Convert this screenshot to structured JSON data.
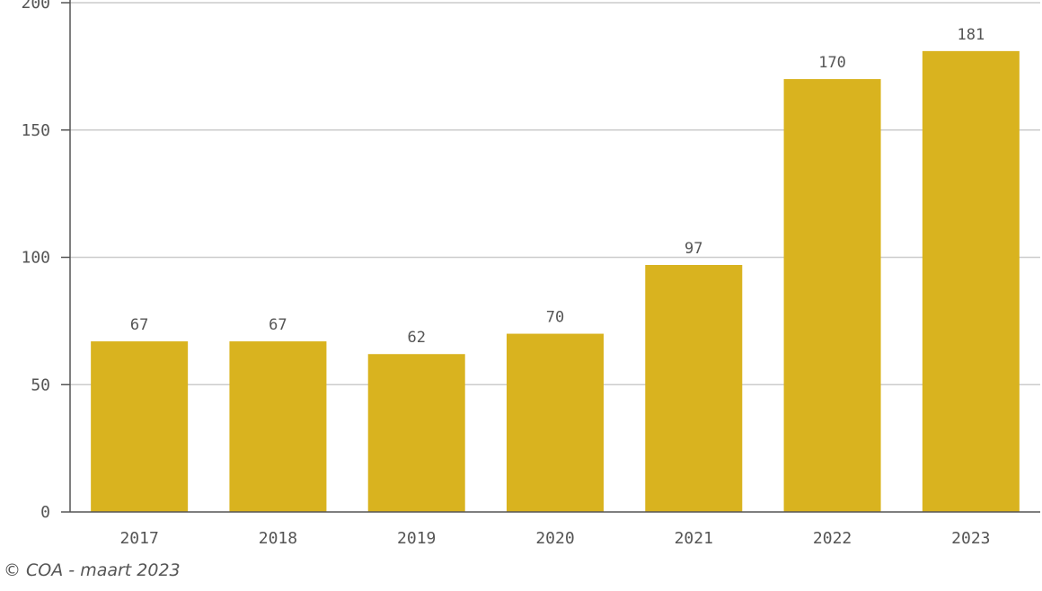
{
  "chart_data": {
    "type": "bar",
    "categories": [
      "2017",
      "2018",
      "2019",
      "2020",
      "2021",
      "2022",
      "2023"
    ],
    "values": [
      67,
      67,
      62,
      70,
      97,
      170,
      181
    ],
    "value_labels": [
      "67",
      "67",
      "62",
      "70",
      "97",
      "170",
      "181"
    ],
    "ylim": [
      0,
      200
    ],
    "yticks": [
      0,
      50,
      100,
      150,
      200
    ],
    "ytick_labels": [
      "0",
      "50",
      "100",
      "150",
      "200"
    ],
    "title": "",
    "xlabel": "",
    "ylabel": "",
    "grid": true,
    "bar_color": "#d9b31f",
    "grid_color": "#cccccc",
    "axis_color": "#555555"
  },
  "footer": {
    "credit": "© COA - maart 2023"
  }
}
